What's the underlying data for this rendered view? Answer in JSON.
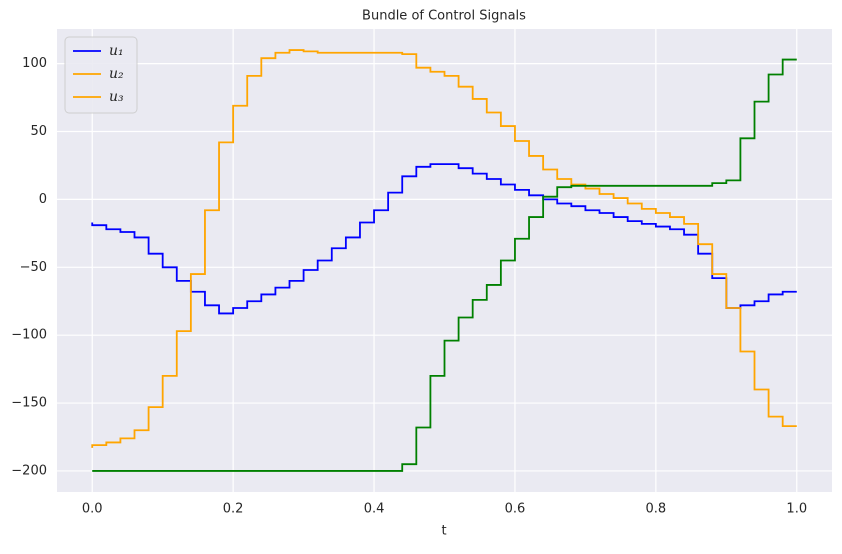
{
  "chart_data": {
    "type": "step",
    "title": "Bundle of Control Signals",
    "x_label": "t",
    "x": [
      0,
      0.02,
      0.04,
      0.06,
      0.08,
      0.1,
      0.12,
      0.14,
      0.16,
      0.18,
      0.2,
      0.22,
      0.24,
      0.26,
      0.28,
      0.3,
      0.32,
      0.34,
      0.36,
      0.38,
      0.4,
      0.42,
      0.44,
      0.46,
      0.48,
      0.5,
      0.52,
      0.54,
      0.56,
      0.58,
      0.6,
      0.62,
      0.64,
      0.66,
      0.68,
      0.7,
      0.72,
      0.74,
      0.76,
      0.78,
      0.8,
      0.82,
      0.84,
      0.86,
      0.88,
      0.9,
      0.92,
      0.94,
      0.96,
      0.98,
      1.0
    ],
    "series": [
      {
        "name": "u₁",
        "color": "#0000ff",
        "legend_color": "#0000ff",
        "values": [
          -17,
          -19,
          -22,
          -24,
          -28,
          -40,
          -50,
          -60,
          -68,
          -78,
          -84,
          -80,
          -75,
          -70,
          -65,
          -60,
          -52,
          -45,
          -36,
          -28,
          -17,
          -8,
          5,
          17,
          24,
          26,
          26,
          23,
          19,
          15,
          11,
          7,
          3,
          0,
          -3,
          -5,
          -8,
          -10,
          -13,
          -16,
          -18,
          -20,
          -22,
          -26,
          -40,
          -58,
          -80,
          -78,
          -75,
          -70,
          -68
        ]
      },
      {
        "name": "u₂",
        "color": "#ffa500",
        "legend_color": "#ffa500",
        "values": [
          -183,
          -181,
          -179,
          -176,
          -170,
          -153,
          -130,
          -97,
          -55,
          -8,
          42,
          69,
          91,
          104,
          108,
          110,
          109,
          108,
          108,
          108,
          108,
          108,
          108,
          107,
          97,
          94,
          91,
          83,
          74,
          64,
          54,
          43,
          32,
          22,
          15,
          11,
          8,
          4,
          1,
          -3,
          -7,
          -10,
          -13,
          -18,
          -33,
          -55,
          -80,
          -112,
          -140,
          -160,
          -167
        ]
      },
      {
        "name": "u₃",
        "color": "#008000",
        "legend_color": "#ffa500",
        "values": [
          -200,
          -200,
          -200,
          -200,
          -200,
          -200,
          -200,
          -200,
          -200,
          -200,
          -200,
          -200,
          -200,
          -200,
          -200,
          -200,
          -200,
          -200,
          -200,
          -200,
          -200,
          -200,
          -200,
          -195,
          -168,
          -130,
          -104,
          -87,
          -74,
          -63,
          -45,
          -29,
          -13,
          2,
          9,
          10,
          10,
          10,
          10,
          10,
          10,
          10,
          10,
          10,
          10,
          12,
          14,
          45,
          72,
          92,
          103
        ]
      }
    ],
    "xlim": [
      -0.05,
      1.05
    ],
    "ylim": [
      -215.5,
      125.5
    ],
    "xticks": [
      {
        "value": 0,
        "label": "0.0"
      },
      {
        "value": 0.2,
        "label": "0.2"
      },
      {
        "value": 0.4,
        "label": "0.4"
      },
      {
        "value": 0.6,
        "label": "0.6"
      },
      {
        "value": 0.8,
        "label": "0.8"
      },
      {
        "value": 1.0,
        "label": "1.0"
      }
    ],
    "yticks": [
      {
        "value": -200,
        "label": "−200"
      },
      {
        "value": -150,
        "label": "−150"
      },
      {
        "value": -100,
        "label": "−100"
      },
      {
        "value": -50,
        "label": "−50"
      },
      0,
      50,
      100
    ],
    "grid": true,
    "legend": "upper left"
  }
}
